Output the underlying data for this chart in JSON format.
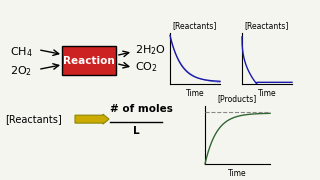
{
  "bg_color": "#f5f5f0",
  "reaction_box_color": "#cc2222",
  "reaction_box_text": "Reaction",
  "arrow_color_yellow": "#ccaa00",
  "arrow_edge_color": "#888800",
  "reactants_label": "[Reactants]",
  "products_label": "[Products]",
  "time_label": "Time",
  "moles_label": "# of moles",
  "moles_sublabel": "L",
  "graph1_color": "#1a1aaa",
  "graph2_color": "#1a1aaa",
  "graph3_color": "#336633",
  "graph3_dashed_color": "#888888"
}
